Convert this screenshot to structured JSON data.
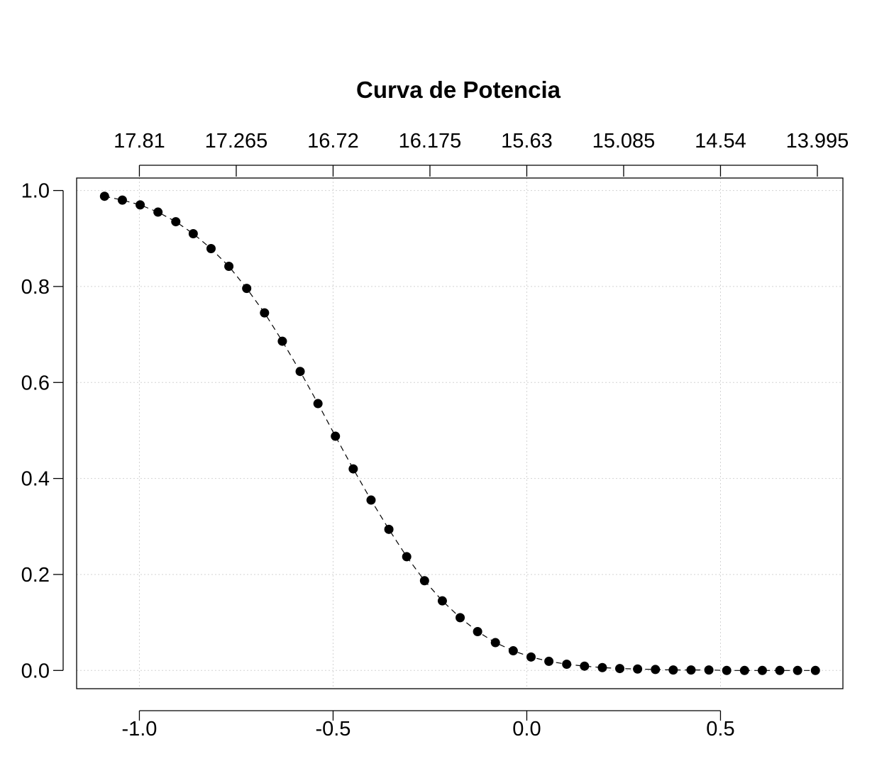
{
  "chart_data": {
    "type": "scatter",
    "title": "Curva de Potencia",
    "xlabel": "",
    "ylabel": "",
    "xlim": [
      -1.162,
      0.816
    ],
    "ylim": [
      -0.038,
      1.026
    ],
    "grid": true,
    "legend": "none",
    "x_ticks": [
      -1.0,
      -0.5,
      0.0,
      0.5
    ],
    "x_tick_labels": [
      "-1.0",
      "-0.5",
      "0.0",
      "0.5"
    ],
    "y_ticks": [
      0.0,
      0.2,
      0.4,
      0.6,
      0.8,
      1.0
    ],
    "y_tick_labels": [
      "0.0",
      "0.2",
      "0.4",
      "0.6",
      "0.8",
      "1.0"
    ],
    "top_axis_ticks": [
      -1.0,
      -0.75,
      -0.5,
      -0.25,
      0.0,
      0.25,
      0.5,
      0.75
    ],
    "top_axis_labels": [
      "17.81",
      "17.265",
      "16.72",
      "16.175",
      "15.63",
      "15.085",
      "14.54",
      "13.995"
    ],
    "series": [
      {
        "x": [
          -1.09,
          -1.044,
          -0.998,
          -0.952,
          -0.906,
          -0.861,
          -0.815,
          -0.769,
          -0.723,
          -0.677,
          -0.631,
          -0.585,
          -0.539,
          -0.494,
          -0.448,
          -0.402,
          -0.356,
          -0.31,
          -0.264,
          -0.218,
          -0.172,
          -0.127,
          -0.081,
          -0.035,
          0.011,
          0.057,
          0.103,
          0.149,
          0.195,
          0.24,
          0.286,
          0.332,
          0.378,
          0.424,
          0.47,
          0.516,
          0.562,
          0.608,
          0.653,
          0.699,
          0.745
        ],
        "y": [
          0.988,
          0.98,
          0.97,
          0.955,
          0.935,
          0.91,
          0.879,
          0.842,
          0.796,
          0.745,
          0.686,
          0.623,
          0.556,
          0.488,
          0.42,
          0.355,
          0.294,
          0.237,
          0.187,
          0.145,
          0.11,
          0.081,
          0.058,
          0.041,
          0.028,
          0.019,
          0.013,
          0.009,
          0.006,
          0.004,
          0.003,
          0.002,
          0.001,
          0.001,
          0.001,
          0.0,
          0.0,
          0.0,
          0.0,
          0.0,
          0.0
        ]
      }
    ]
  }
}
